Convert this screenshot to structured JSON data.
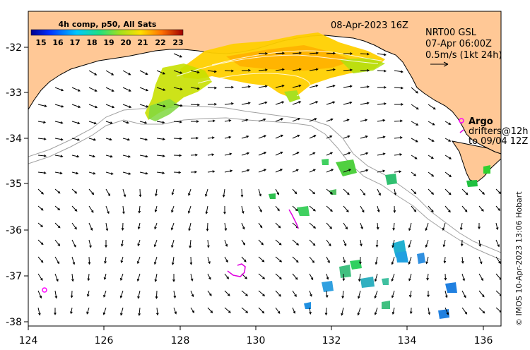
{
  "map": {
    "colorbar": {
      "title": "4h comp, p50, All Sats",
      "ticks": [
        "15",
        "16",
        "17",
        "18",
        "19",
        "20",
        "21",
        "22",
        "23"
      ],
      "min": 14.5,
      "max": 23.5
    },
    "date_label": "08-Apr-2023 16Z",
    "wind_box": {
      "line1": "NRT00 GSL",
      "line2": "07-Apr 06:00Z",
      "line3": "0.5m/s (1kt 24h)"
    },
    "argo_label": "Argo",
    "drifters_line1": "drifters@12h",
    "drifters_line2": "to 09/04 12Z",
    "credit": "© IMOS 10-Apr-2023 13:06 Hobart",
    "lon_ticks": [
      "124",
      "126",
      "128",
      "130",
      "132",
      "134",
      "136"
    ],
    "lat_ticks": [
      "-32",
      "-33",
      "-34",
      "-35",
      "-36",
      "-37",
      "-38"
    ],
    "lon_range": [
      124,
      136.5
    ],
    "lat_range": [
      -38.1,
      -31.3
    ],
    "colors": {
      "land": "#ffc896",
      "sea": "#ffffff",
      "coastline": "#000000",
      "isobath": "#a0a0a0",
      "argo": "#ff00ff",
      "drifter": "#e000e0"
    }
  }
}
